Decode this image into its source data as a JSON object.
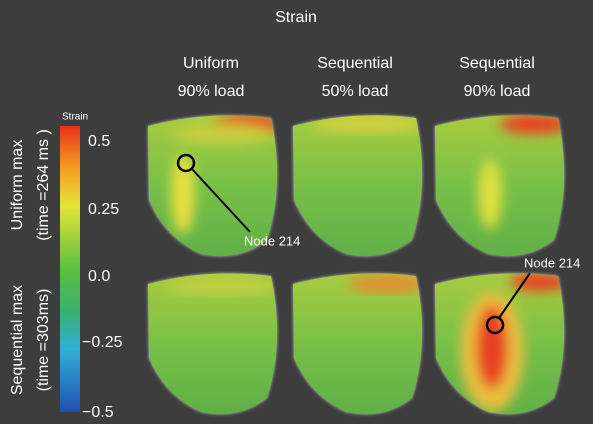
{
  "title": "Strain",
  "columns": [
    {
      "line1": "Uniform",
      "line2": "90% load"
    },
    {
      "line1": "Sequential",
      "line2": "50% load"
    },
    {
      "line1": "Sequential",
      "line2": "90% load"
    }
  ],
  "rows": [
    {
      "line1": "Uniform max",
      "line2": "(time =264 ms )"
    },
    {
      "line1": "Sequential max",
      "line2": "(time =303ms)"
    }
  ],
  "colorbar": {
    "label": "Strain",
    "ticks": [
      "0.5",
      "0.25",
      "0.0",
      "−0.25",
      "−0.5"
    ]
  },
  "annotations": [
    "Node 214",
    "Node 214"
  ]
}
